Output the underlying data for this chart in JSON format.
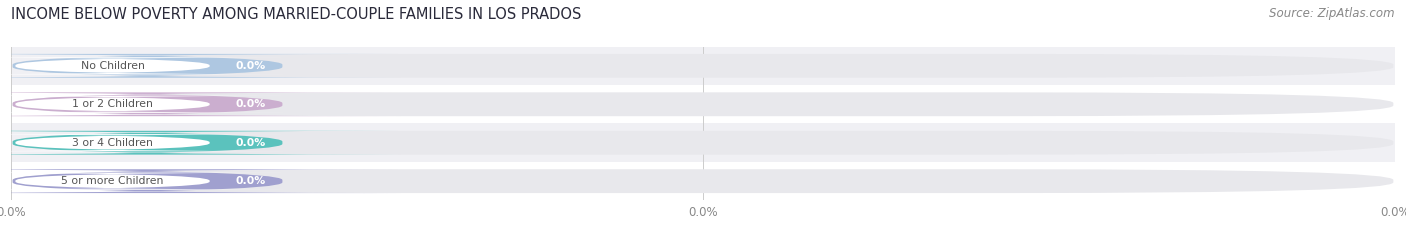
{
  "title": "INCOME BELOW POVERTY AMONG MARRIED-COUPLE FAMILIES IN LOS PRADOS",
  "source": "Source: ZipAtlas.com",
  "categories": [
    "No Children",
    "1 or 2 Children",
    "3 or 4 Children",
    "5 or more Children"
  ],
  "values": [
    0.0,
    0.0,
    0.0,
    0.0
  ],
  "bar_colors": [
    "#a8c4e0",
    "#c8a8cc",
    "#4cbeb8",
    "#9898cc"
  ],
  "background_color": "#ffffff",
  "bar_bg_color": "#e8e8ec",
  "title_fontsize": 10.5,
  "source_fontsize": 8.5,
  "tick_labels": [
    "0.0%",
    "0.0%",
    "0.0%"
  ],
  "bar_row_bg": "#f0f0f4"
}
